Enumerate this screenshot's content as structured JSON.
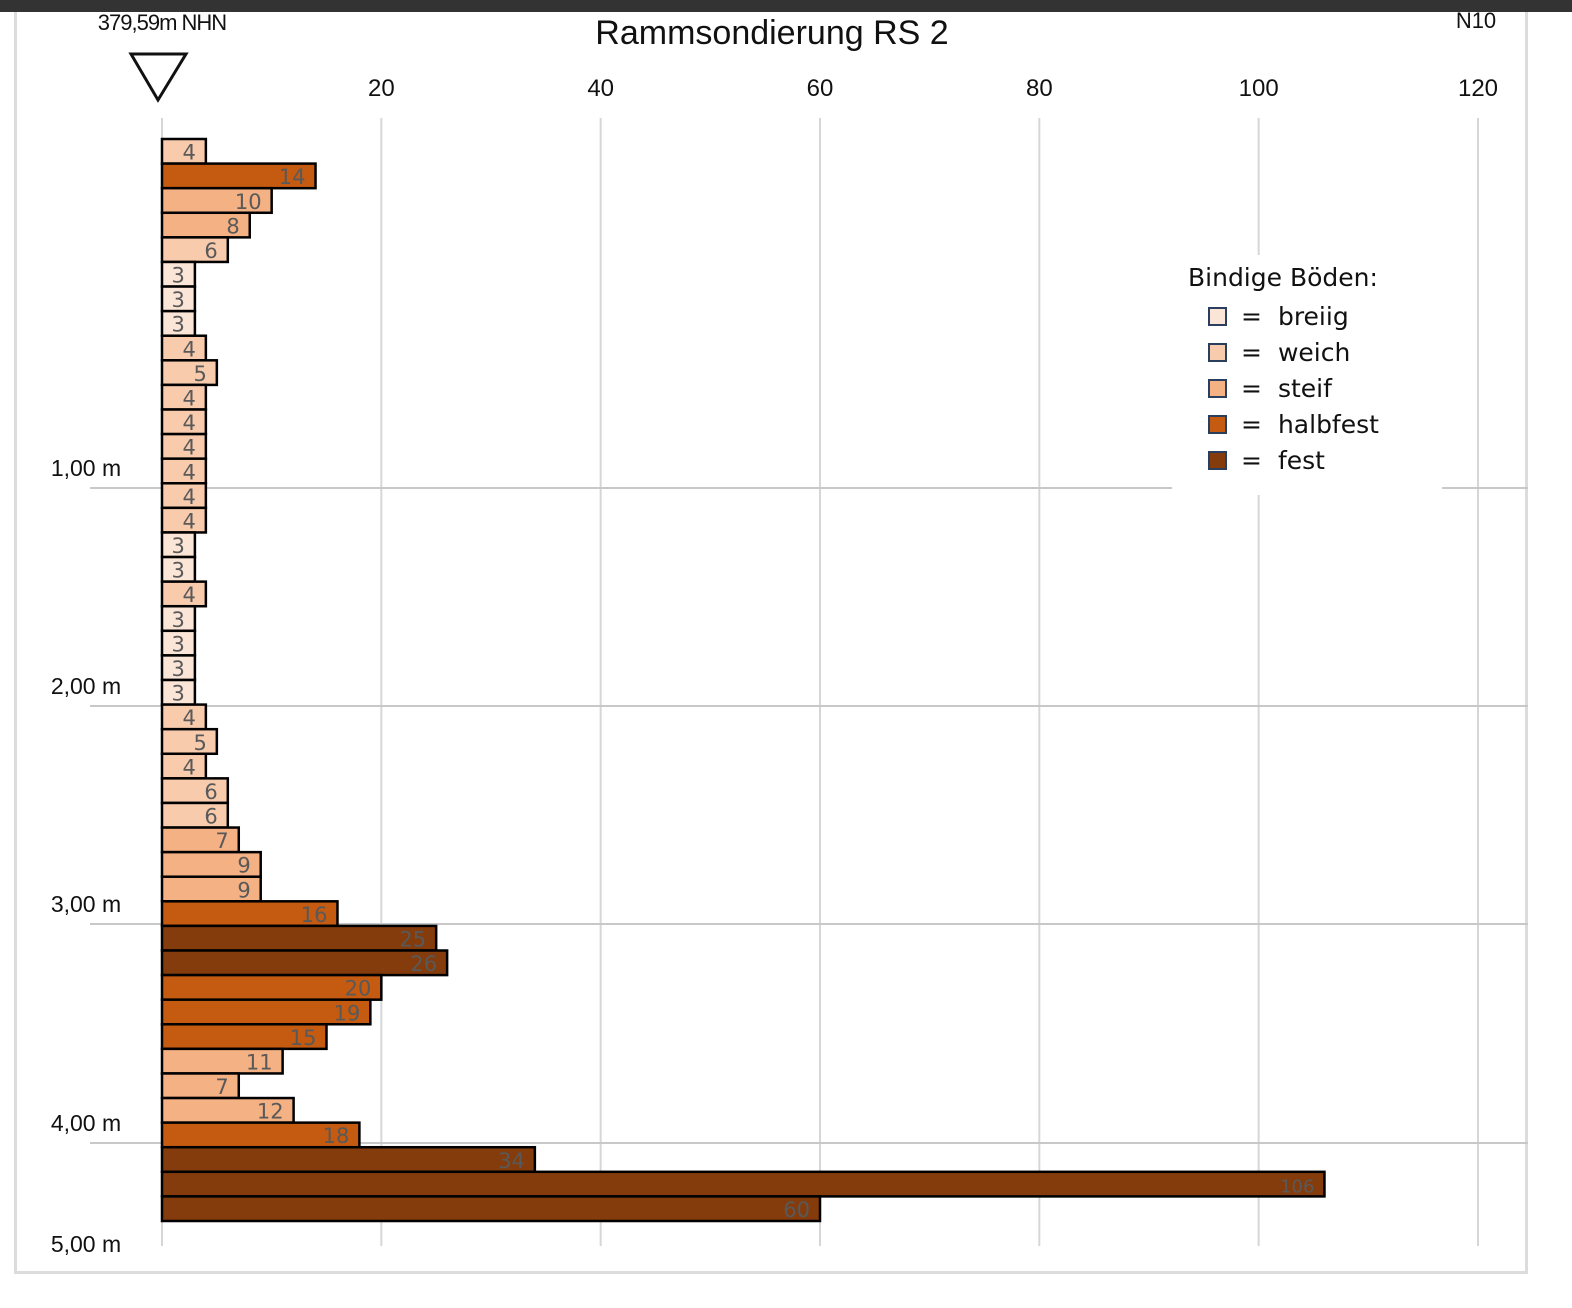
{
  "chart_data": {
    "type": "bar",
    "orientation": "horizontal",
    "title": "Rammsondierung RS 2",
    "elevation_label": "379,59m NHN",
    "xlabel": "N10",
    "x_ticks": [
      20,
      40,
      60,
      80,
      100,
      120
    ],
    "xlim": [
      0,
      120
    ],
    "y_ticks": [
      "1,00 m",
      "2,00 m",
      "3,00 m",
      "4,00 m",
      "5,00 m"
    ],
    "ylim_m": [
      0,
      5
    ],
    "grid": true,
    "legend_position": "top-right",
    "legend": {
      "title": "Bindige Böden:",
      "entries": [
        {
          "key": "breiig",
          "label": "breiig",
          "color": "#FBE5D6"
        },
        {
          "key": "weich",
          "label": "weich",
          "color": "#F8CBAD"
        },
        {
          "key": "steif",
          "label": "steif",
          "color": "#F4B183"
        },
        {
          "key": "halbfest",
          "label": "halbfest",
          "color": "#C55A11"
        },
        {
          "key": "fest",
          "label": "fest",
          "color": "#843C0C"
        }
      ]
    },
    "bars": [
      {
        "value": 4,
        "class": "weich"
      },
      {
        "value": 14,
        "class": "halbfest"
      },
      {
        "value": 10,
        "class": "steif"
      },
      {
        "value": 8,
        "class": "steif"
      },
      {
        "value": 6,
        "class": "weich"
      },
      {
        "value": 3,
        "class": "breiig"
      },
      {
        "value": 3,
        "class": "breiig"
      },
      {
        "value": 3,
        "class": "breiig"
      },
      {
        "value": 4,
        "class": "weich"
      },
      {
        "value": 5,
        "class": "weich"
      },
      {
        "value": 4,
        "class": "weich"
      },
      {
        "value": 4,
        "class": "weich"
      },
      {
        "value": 4,
        "class": "weich"
      },
      {
        "value": 4,
        "class": "weich"
      },
      {
        "value": 4,
        "class": "weich"
      },
      {
        "value": 4,
        "class": "weich"
      },
      {
        "value": 3,
        "class": "breiig"
      },
      {
        "value": 3,
        "class": "breiig"
      },
      {
        "value": 4,
        "class": "weich"
      },
      {
        "value": 3,
        "class": "breiig"
      },
      {
        "value": 3,
        "class": "breiig"
      },
      {
        "value": 3,
        "class": "breiig"
      },
      {
        "value": 3,
        "class": "breiig"
      },
      {
        "value": 4,
        "class": "weich"
      },
      {
        "value": 5,
        "class": "weich"
      },
      {
        "value": 4,
        "class": "weich"
      },
      {
        "value": 6,
        "class": "weich"
      },
      {
        "value": 6,
        "class": "weich"
      },
      {
        "value": 7,
        "class": "steif"
      },
      {
        "value": 9,
        "class": "steif"
      },
      {
        "value": 9,
        "class": "steif"
      },
      {
        "value": 16,
        "class": "halbfest"
      },
      {
        "value": 25,
        "class": "fest"
      },
      {
        "value": 26,
        "class": "fest"
      },
      {
        "value": 20,
        "class": "halbfest"
      },
      {
        "value": 19,
        "class": "halbfest"
      },
      {
        "value": 15,
        "class": "halbfest"
      },
      {
        "value": 11,
        "class": "steif"
      },
      {
        "value": 7,
        "class": "steif"
      },
      {
        "value": 12,
        "class": "steif"
      },
      {
        "value": 18,
        "class": "halbfest"
      },
      {
        "value": 34,
        "class": "fest"
      },
      {
        "value": 106,
        "class": "fest"
      },
      {
        "value": 60,
        "class": "fest"
      }
    ]
  }
}
